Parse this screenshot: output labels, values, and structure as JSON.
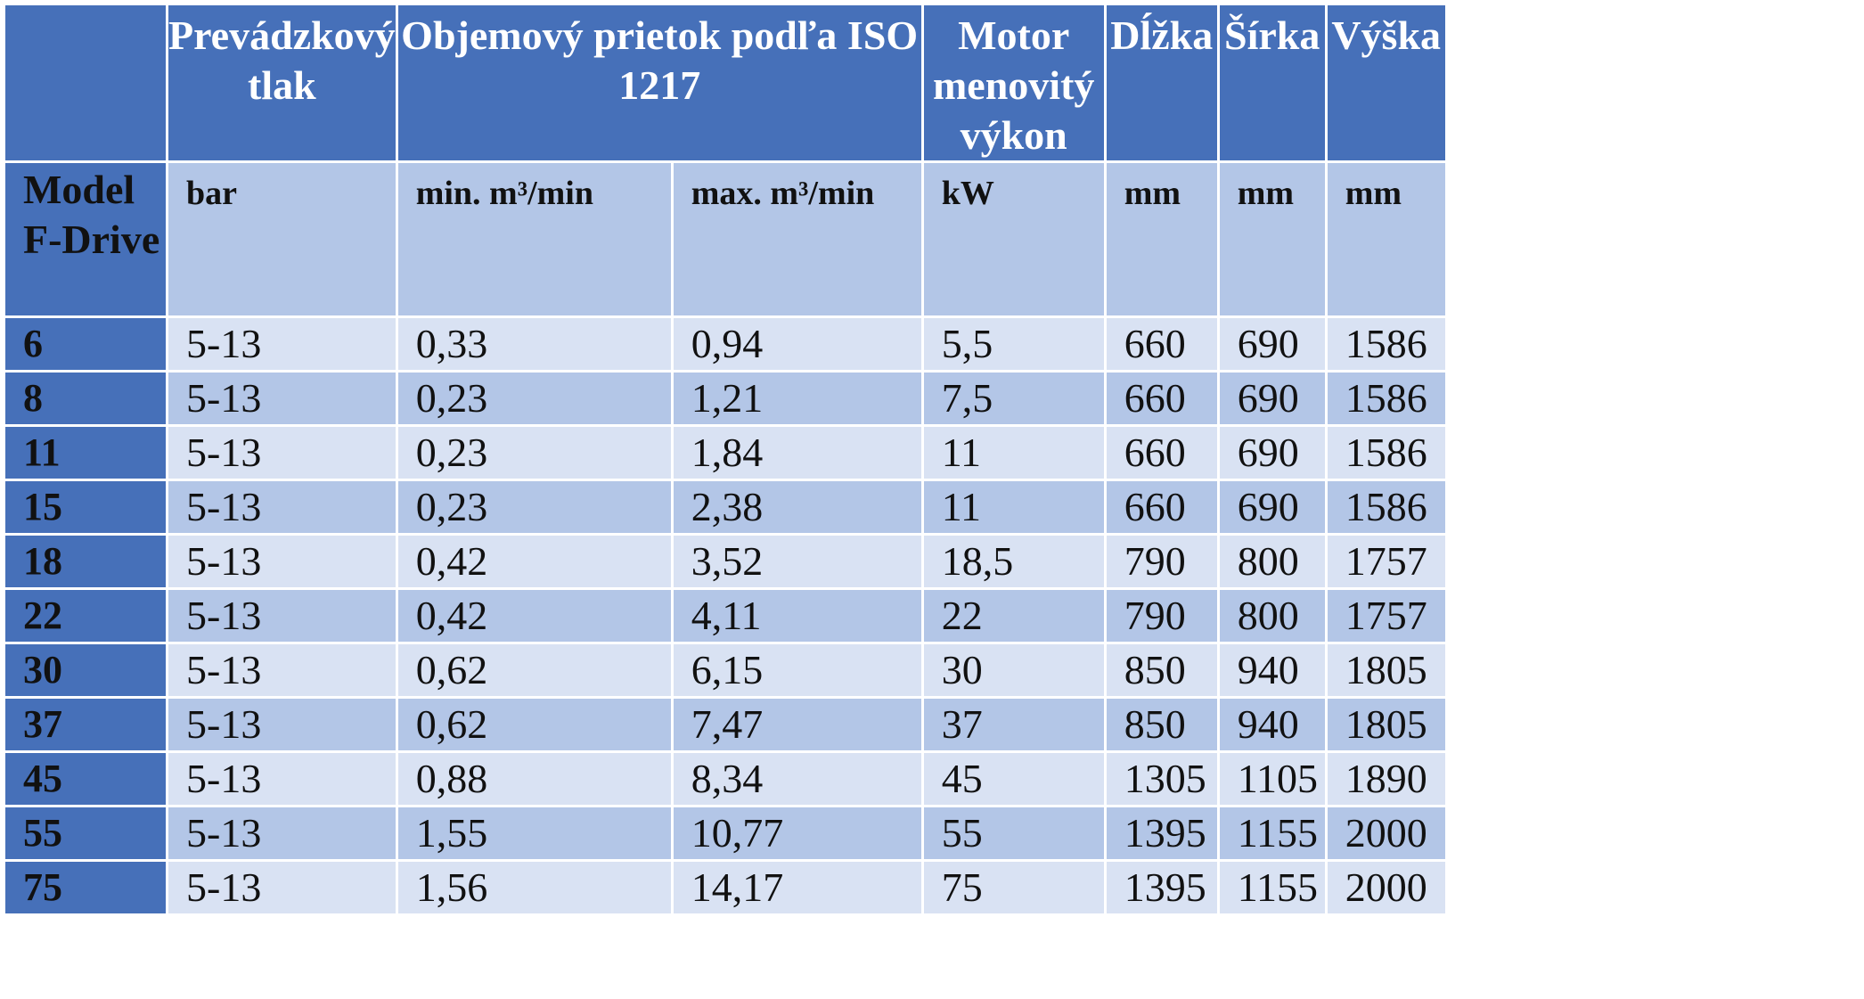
{
  "header": {
    "corner": "",
    "pressure": "Prevádzkový tlak",
    "flow": "Objemový prietok podľa ISO 1217",
    "motor": "Motor menovitý výkon",
    "length": "Dĺžka",
    "width": "Šírka",
    "height": "Výška"
  },
  "units": {
    "model": "Model F-Drive",
    "pressure": "bar",
    "flow_min": "min. m³/min",
    "flow_max": "max. m³/min",
    "motor": "kW",
    "length": "mm",
    "width": "mm",
    "height": "mm"
  },
  "rows": [
    {
      "model": "6",
      "pressure": "5-13",
      "flow_min": "0,33",
      "flow_max": "0,94",
      "motor": "5,5",
      "length": "660",
      "width": "690",
      "height": "1586"
    },
    {
      "model": "8",
      "pressure": "5-13",
      "flow_min": "0,23",
      "flow_max": "1,21",
      "motor": "7,5",
      "length": "660",
      "width": "690",
      "height": "1586"
    },
    {
      "model": "11",
      "pressure": "5-13",
      "flow_min": "0,23",
      "flow_max": "1,84",
      "motor": "11",
      "length": "660",
      "width": "690",
      "height": "1586"
    },
    {
      "model": "15",
      "pressure": "5-13",
      "flow_min": "0,23",
      "flow_max": "2,38",
      "motor": "11",
      "length": "660",
      "width": "690",
      "height": "1586"
    },
    {
      "model": "18",
      "pressure": "5-13",
      "flow_min": "0,42",
      "flow_max": "3,52",
      "motor": "18,5",
      "length": "790",
      "width": "800",
      "height": "1757"
    },
    {
      "model": "22",
      "pressure": "5-13",
      "flow_min": "0,42",
      "flow_max": "4,11",
      "motor": "22",
      "length": "790",
      "width": "800",
      "height": "1757"
    },
    {
      "model": "30",
      "pressure": "5-13",
      "flow_min": "0,62",
      "flow_max": "6,15",
      "motor": "30",
      "length": "850",
      "width": "940",
      "height": "1805"
    },
    {
      "model": "37",
      "pressure": "5-13",
      "flow_min": "0,62",
      "flow_max": "7,47",
      "motor": "37",
      "length": "850",
      "width": "940",
      "height": "1805"
    },
    {
      "model": "45",
      "pressure": "5-13",
      "flow_min": "0,88",
      "flow_max": "8,34",
      "motor": "45",
      "length": "1305",
      "width": "1105",
      "height": "1890"
    },
    {
      "model": "55",
      "pressure": "5-13",
      "flow_min": "1,55",
      "flow_max": "10,77",
      "motor": "55",
      "length": "1395",
      "width": "1155",
      "height": "2000"
    },
    {
      "model": "75",
      "pressure": "5-13",
      "flow_min": "1,56",
      "flow_max": "14,17",
      "motor": "75",
      "length": "1395",
      "width": "1155",
      "height": "2000"
    }
  ],
  "colors": {
    "header_bg": "#4670b9",
    "unit_row_bg": "#b3c6e7",
    "row_light_bg": "#d9e2f3",
    "row_dark_bg": "#b3c6e7"
  }
}
